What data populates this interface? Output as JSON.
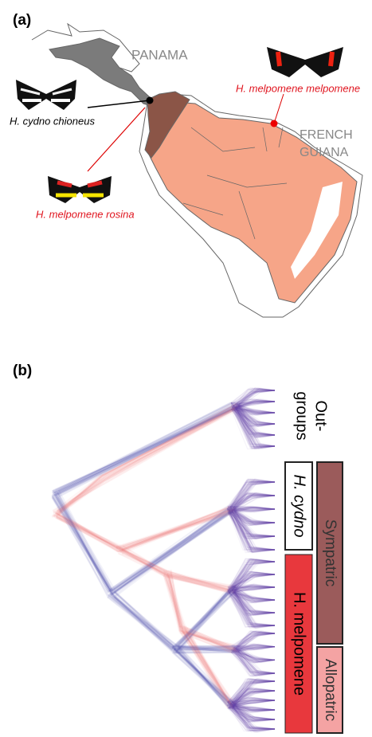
{
  "panel_a": {
    "label": "(a)",
    "region_1": "PANAMA",
    "region_2": [
      "FRENCH",
      "GUIANA"
    ],
    "species_1": "H. cydno chioneus",
    "species_2": "H. melpomene melpomene",
    "species_3": "H. melpomene rosina"
  },
  "panel_b": {
    "label": "(b)",
    "outgroups": [
      "Out-",
      "groups"
    ],
    "clade_1": "H. cydno",
    "clade_2": "H. melpomene",
    "range_1": "Sympatric",
    "range_2": "Allopatric"
  }
}
